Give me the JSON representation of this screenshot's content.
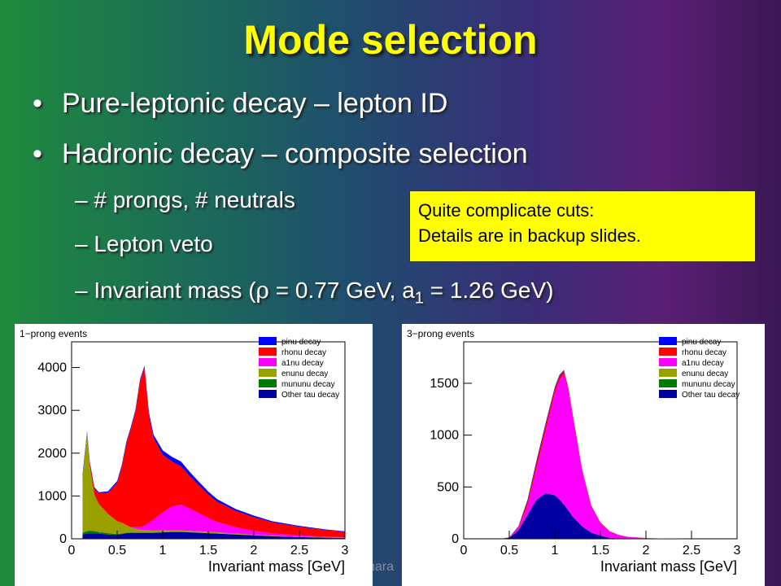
{
  "slide": {
    "title": "Mode selection",
    "bullets": [
      "Pure-leptonic decay – lepton ID",
      "Hadronic decay – composite selection"
    ],
    "subbullets": {
      "s1": "– # prongs, # neutrals",
      "s2": "– Lepton veto",
      "s3_pre": "– Invariant mass (",
      "s3_rho": "ρ",
      "s3_mid": " = 0.77 GeV,  a",
      "s3_sub": "1",
      "s3_post": " = 1.26 GeV)"
    },
    "callout": [
      "Quite complicate cuts:",
      "Details are in backup slides."
    ],
    "footer_text": "hara",
    "colors": {
      "title": "#ffff00",
      "callout_bg": "#ffff00"
    }
  },
  "chart_data": [
    {
      "type": "area",
      "stacked": true,
      "title": "1−prong events",
      "xlabel": "Invariant mass [GeV]",
      "ylabel": "",
      "xlim": [
        0,
        3
      ],
      "ylim": [
        0,
        4600
      ],
      "xticks": [
        "0",
        "0.5",
        "1",
        "1.5",
        "2",
        "2.5",
        "3"
      ],
      "yticks": [
        "0",
        "1000",
        "2000",
        "3000",
        "4000"
      ],
      "x": [
        0.12,
        0.17,
        0.2,
        0.25,
        0.3,
        0.4,
        0.5,
        0.55,
        0.6,
        0.65,
        0.7,
        0.75,
        0.8,
        0.85,
        0.9,
        1.0,
        1.1,
        1.2,
        1.3,
        1.4,
        1.5,
        1.6,
        1.8,
        2.0,
        2.2,
        2.5,
        2.8,
        3.0
      ],
      "series": [
        {
          "name": "Other tau decay",
          "color": "#0000a0",
          "values": [
            100,
            120,
            130,
            130,
            120,
            100,
            90,
            110,
            130,
            140,
            140,
            140,
            140,
            140,
            140,
            150,
            160,
            160,
            150,
            140,
            130,
            120,
            100,
            80,
            60,
            40,
            25,
            20
          ]
        },
        {
          "name": "mununu decay",
          "color": "#007a00",
          "values": [
            40,
            60,
            60,
            50,
            40,
            30,
            20,
            15,
            10,
            10,
            8,
            5,
            5,
            5,
            5,
            5,
            5,
            5,
            5,
            5,
            3,
            3,
            2,
            2,
            2,
            1,
            1,
            1
          ]
        },
        {
          "name": "enunu decay",
          "color": "#99a000",
          "values": [
            1300,
            2300,
            1500,
            850,
            650,
            450,
            300,
            250,
            180,
            120,
            90,
            70,
            60,
            50,
            45,
            40,
            30,
            30,
            30,
            30,
            30,
            30,
            20,
            15,
            10,
            10,
            5,
            5
          ]
        },
        {
          "name": "a1nu decay",
          "color": "#ff00ff",
          "values": [
            0,
            0,
            0,
            0,
            0,
            0,
            0,
            0,
            0,
            0,
            30,
            60,
            100,
            180,
            260,
            420,
            560,
            600,
            520,
            420,
            320,
            240,
            150,
            90,
            55,
            30,
            20,
            10
          ]
        },
        {
          "name": "rhonu decay",
          "color": "#ff0000",
          "values": [
            0,
            0,
            80,
            150,
            250,
            500,
            900,
            1300,
            1900,
            2300,
            2700,
            3400,
            3700,
            2500,
            1900,
            1350,
            1050,
            900,
            750,
            650,
            550,
            470,
            380,
            320,
            260,
            200,
            150,
            130
          ]
        },
        {
          "name": "pinu decay",
          "color": "#0000ff",
          "values": [
            60,
            40,
            30,
            25,
            25,
            30,
            40,
            40,
            40,
            40,
            40,
            40,
            40,
            60,
            80,
            100,
            110,
            110,
            100,
            80,
            70,
            60,
            45,
            35,
            25,
            20,
            15,
            10
          ]
        }
      ]
    },
    {
      "type": "area",
      "stacked": true,
      "title": "3−prong events",
      "xlabel": "Invariant mass [GeV]",
      "ylabel": "",
      "xlim": [
        0,
        3
      ],
      "ylim": [
        0,
        1900
      ],
      "xticks": [
        "0",
        "0.5",
        "1",
        "1.5",
        "2",
        "2.5",
        "3"
      ],
      "yticks": [
        "0",
        "500",
        "1000",
        "1500"
      ],
      "x": [
        0.4,
        0.5,
        0.6,
        0.7,
        0.8,
        0.9,
        1.0,
        1.05,
        1.1,
        1.15,
        1.2,
        1.3,
        1.4,
        1.5,
        1.6,
        1.7,
        1.8,
        2.0,
        2.2,
        2.5,
        3.0
      ],
      "series": [
        {
          "name": "Other tau decay",
          "color": "#0000a0",
          "values": [
            0,
            10,
            80,
            230,
            380,
            440,
            420,
            380,
            330,
            270,
            210,
            120,
            60,
            30,
            10,
            5,
            3,
            2,
            1,
            0,
            0
          ]
        },
        {
          "name": "mununu decay",
          "color": "#007a00",
          "values": [
            0,
            0,
            0,
            0,
            0,
            0,
            0,
            0,
            0,
            0,
            0,
            0,
            0,
            0,
            0,
            0,
            0,
            0,
            0,
            0,
            0
          ]
        },
        {
          "name": "enunu decay",
          "color": "#99a000",
          "values": [
            0,
            0,
            0,
            0,
            0,
            0,
            0,
            0,
            0,
            0,
            0,
            0,
            0,
            0,
            0,
            0,
            0,
            0,
            0,
            0,
            0
          ]
        },
        {
          "name": "a1nu decay",
          "color": "#ff00ff",
          "values": [
            0,
            2,
            20,
            90,
            300,
            600,
            980,
            1150,
            1260,
            1150,
            950,
            530,
            250,
            120,
            60,
            30,
            15,
            5,
            2,
            0,
            0
          ]
        },
        {
          "name": "rhonu decay",
          "color": "#ff0000",
          "values": [
            0,
            2,
            15,
            40,
            60,
            60,
            50,
            40,
            30,
            25,
            20,
            15,
            10,
            8,
            5,
            3,
            2,
            1,
            0,
            0,
            0
          ]
        },
        {
          "name": "pinu decay",
          "color": "#0000ff",
          "values": [
            0,
            1,
            5,
            15,
            20,
            20,
            15,
            10,
            8,
            5,
            4,
            3,
            2,
            1,
            0,
            0,
            0,
            0,
            0,
            0,
            0
          ]
        }
      ]
    }
  ]
}
